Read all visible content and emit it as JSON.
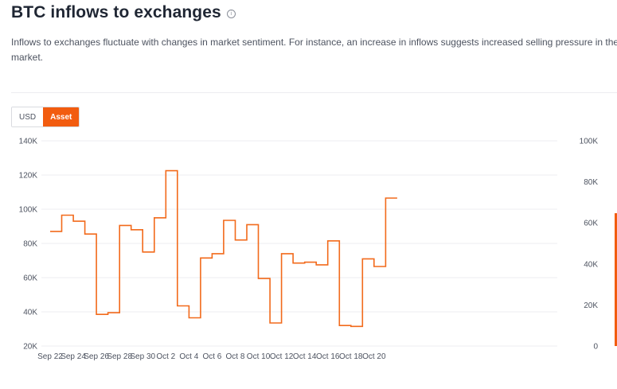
{
  "header": {
    "title": "BTC inflows to exchanges",
    "info_icon": "info-icon",
    "description": "Inflows to exchanges fluctuate with changes in market sentiment. For instance, an increase in inflows suggests increased selling pressure in the market."
  },
  "toggle": {
    "usd_label": "USD",
    "asset_label": "Asset",
    "selected": "Asset"
  },
  "colors": {
    "accent": "#f25c0f",
    "line": "#f26a1b",
    "grid": "#ececf0"
  },
  "chart_data": {
    "type": "line",
    "step": true,
    "x": [
      "Sep 22",
      "Sep 23",
      "Sep 24",
      "Sep 25",
      "Sep 26",
      "Sep 27",
      "Sep 28",
      "Sep 29",
      "Sep 30",
      "Oct 1",
      "Oct 2",
      "Oct 3",
      "Oct 4",
      "Oct 5",
      "Oct 6",
      "Oct 7",
      "Oct 8",
      "Oct 9",
      "Oct 10",
      "Oct 11",
      "Oct 12",
      "Oct 13",
      "Oct 14",
      "Oct 15",
      "Oct 16",
      "Oct 17",
      "Oct 18",
      "Oct 19",
      "Oct 20",
      "Oct 21"
    ],
    "x_tick_labels": [
      "Sep 22",
      "Sep 24",
      "Sep 26",
      "Sep 28",
      "Sep 30",
      "Oct 2",
      "Oct 4",
      "Oct 6",
      "Oct 8",
      "Oct 10",
      "Oct 12",
      "Oct 14",
      "Oct 16",
      "Oct 18",
      "Oct 20"
    ],
    "series": [
      {
        "values": [
          87000,
          96500,
          93000,
          85500,
          38500,
          39500,
          90500,
          88000,
          75000,
          95000,
          122500,
          43500,
          36500,
          71500,
          74000,
          93500,
          82000,
          91000,
          59500,
          33500,
          74000,
          68500,
          69000,
          67500,
          81500,
          32000,
          31500,
          71000,
          66500,
          106500
        ]
      }
    ],
    "y_left": {
      "ylim": [
        20000,
        140000
      ],
      "ticks": [
        "20K",
        "40K",
        "60K",
        "80K",
        "100K",
        "120K",
        "140K"
      ]
    },
    "y_right": {
      "ylim": [
        0,
        100000
      ],
      "ticks": [
        "0",
        "20K",
        "40K",
        "60K",
        "80K",
        "100K"
      ]
    },
    "grid": true,
    "legend": "none"
  }
}
